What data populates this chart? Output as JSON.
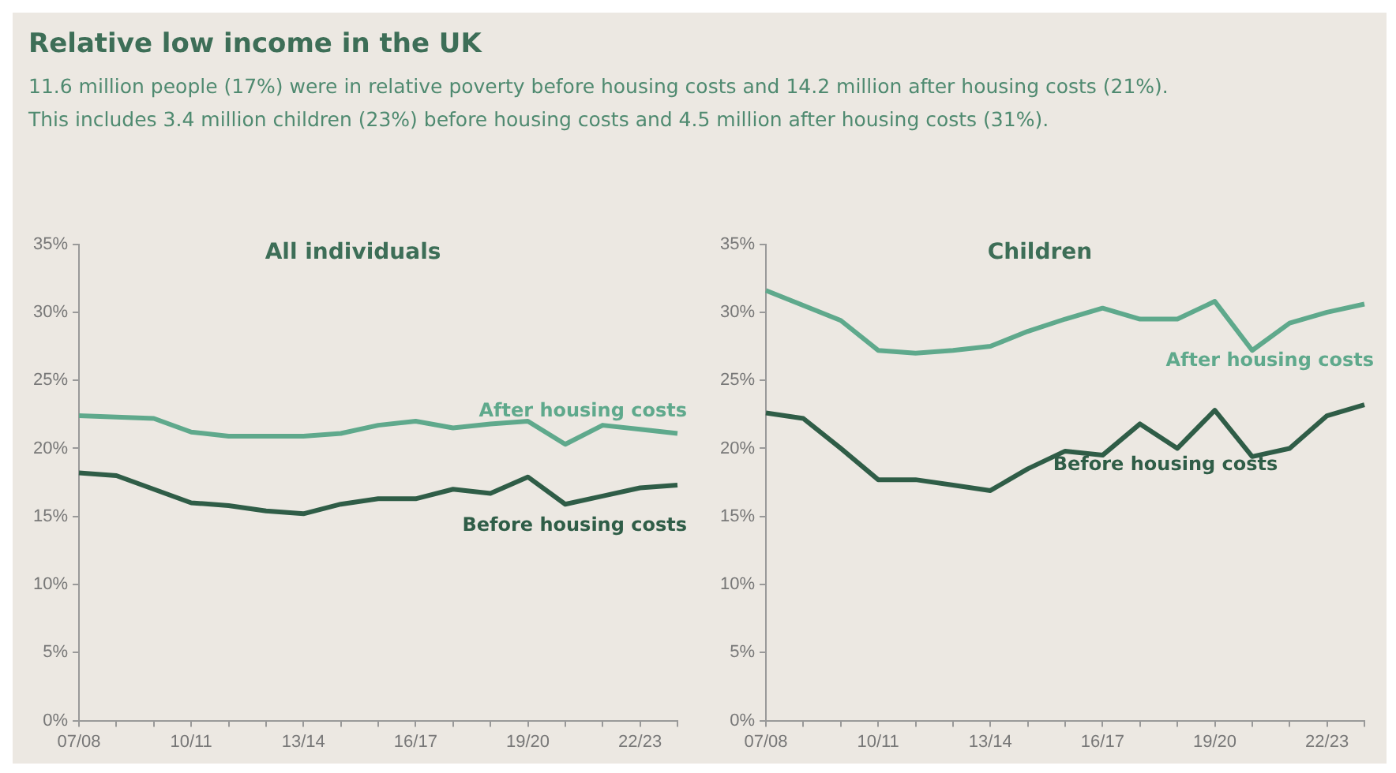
{
  "chart_data": [
    {
      "type": "other",
      "title": "Relative low income in the UK",
      "annotations": [
        "11.6 million people (17%) were in relative poverty before housing costs and 14.2 million after housing costs (21%).",
        "This includes 3.4 million children (23%) before housing costs and 4.5 million after housing costs (31%)."
      ]
    },
    {
      "type": "line",
      "title": "All individuals",
      "categories": [
        "07/08",
        null,
        null,
        "10/11",
        null,
        null,
        "13/14",
        null,
        null,
        "16/17",
        null,
        null,
        "19/20",
        null,
        null,
        "22/23",
        null
      ],
      "ylim": [
        0,
        35
      ],
      "yticks": [
        {
          "value": 0,
          "label": "0%"
        },
        {
          "value": 5,
          "label": "5%"
        },
        {
          "value": 10,
          "label": "10%"
        },
        {
          "value": 15,
          "label": "15%"
        },
        {
          "value": 20,
          "label": "20%"
        },
        {
          "value": 25,
          "label": "25%"
        },
        {
          "value": 30,
          "label": "30%"
        },
        {
          "value": 35,
          "label": "35%"
        }
      ],
      "grid": false,
      "legend": false,
      "marker": "none",
      "series": [
        {
          "name": "After housing costs",
          "color": "#5fa98c",
          "values": [
            22.4,
            22.3,
            22.2,
            21.2,
            20.9,
            20.9,
            20.9,
            21.1,
            21.7,
            22.0,
            21.5,
            21.8,
            22.0,
            20.3,
            21.7,
            21.4,
            21.1
          ]
        },
        {
          "name": "Before housing costs",
          "color": "#2f5d47",
          "values": [
            18.2,
            18.0,
            17.0,
            16.0,
            15.8,
            15.4,
            15.2,
            15.9,
            16.3,
            16.3,
            17.0,
            16.7,
            17.9,
            15.9,
            16.5,
            17.1,
            17.3
          ]
        }
      ]
    },
    {
      "type": "line",
      "title": "Children",
      "categories": [
        "07/08",
        null,
        null,
        "10/11",
        null,
        null,
        "13/14",
        null,
        null,
        "16/17",
        null,
        null,
        "19/20",
        null,
        null,
        "22/23",
        null
      ],
      "ylim": [
        0,
        35
      ],
      "yticks": [
        {
          "value": 0,
          "label": "0%"
        },
        {
          "value": 5,
          "label": "5%"
        },
        {
          "value": 10,
          "label": "10%"
        },
        {
          "value": 15,
          "label": "15%"
        },
        {
          "value": 20,
          "label": "20%"
        },
        {
          "value": 25,
          "label": "25%"
        },
        {
          "value": 30,
          "label": "30%"
        },
        {
          "value": 35,
          "label": "35%"
        }
      ],
      "grid": false,
      "legend": false,
      "marker": "none",
      "series": [
        {
          "name": "After housing costs",
          "color": "#5fa98c",
          "values": [
            31.6,
            30.5,
            29.4,
            27.2,
            27.0,
            27.2,
            27.5,
            28.6,
            29.5,
            30.3,
            29.5,
            29.5,
            30.8,
            27.2,
            29.2,
            30.0,
            30.6
          ]
        },
        {
          "name": "Before housing costs",
          "color": "#2f5d47",
          "values": [
            22.6,
            22.2,
            20.0,
            17.7,
            17.7,
            17.3,
            16.9,
            18.5,
            19.8,
            19.5,
            21.8,
            20.0,
            22.8,
            19.4,
            20.0,
            22.4,
            23.2
          ]
        }
      ]
    }
  ]
}
